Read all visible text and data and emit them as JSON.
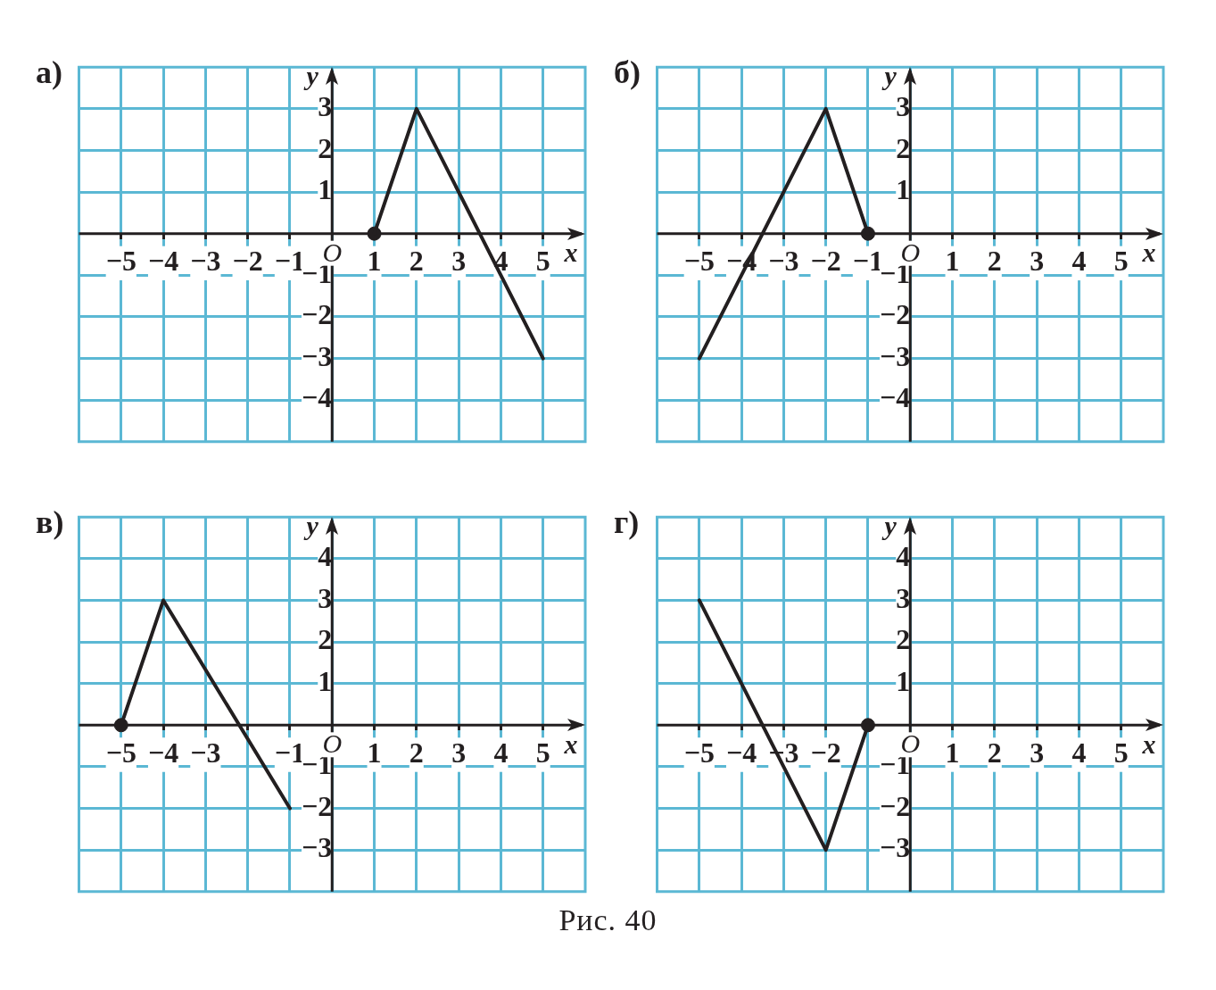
{
  "chart_data": [
    {
      "type": "line",
      "title": "а)",
      "xlabel": "x",
      "ylabel": "y",
      "xlim": [
        -6,
        6
      ],
      "ylim": [
        -5,
        4
      ],
      "xticks": [
        -5,
        -4,
        -3,
        -2,
        -1,
        {
          "value": 0,
          "label": "O"
        },
        1,
        2,
        3,
        4,
        5
      ],
      "yticks": [
        -4,
        -3,
        -2,
        -1,
        1,
        2,
        3
      ],
      "grid": true,
      "legend": false,
      "series": [
        {
          "x": [
            1,
            2,
            5
          ],
          "values": [
            0,
            3,
            -3
          ],
          "color": "#231f20",
          "marker": "none"
        },
        {
          "type": "scatter",
          "x": [
            1
          ],
          "values": [
            0
          ],
          "color": "#231f20",
          "marker": "circle"
        }
      ]
    },
    {
      "type": "line",
      "title": "б)",
      "xlabel": "x",
      "ylabel": "y",
      "xlim": [
        -6,
        6
      ],
      "ylim": [
        -5,
        4
      ],
      "xticks": [
        -5,
        -4,
        -3,
        -2,
        -1,
        {
          "value": 0,
          "label": "O"
        },
        1,
        2,
        3,
        4,
        5
      ],
      "yticks": [
        -4,
        -3,
        -2,
        -1,
        1,
        2,
        3
      ],
      "grid": true,
      "legend": false,
      "series": [
        {
          "x": [
            -5,
            -2,
            -1
          ],
          "values": [
            -3,
            3,
            0
          ],
          "color": "#231f20",
          "marker": "none"
        },
        {
          "type": "scatter",
          "x": [
            -1
          ],
          "values": [
            0
          ],
          "color": "#231f20",
          "marker": "circle"
        }
      ]
    },
    {
      "type": "line",
      "title": "в)",
      "xlabel": "x",
      "ylabel": "y",
      "xlim": [
        -6,
        6
      ],
      "ylim": [
        -4,
        5
      ],
      "xticks": [
        -5,
        -4,
        -3,
        {
          "value": -2,
          "label": null
        },
        -1,
        {
          "value": 0,
          "label": "O"
        },
        1,
        2,
        3,
        4,
        5
      ],
      "yticks": [
        -3,
        -2,
        -1,
        1,
        2,
        3,
        4
      ],
      "grid": true,
      "legend": false,
      "series": [
        {
          "x": [
            -5,
            -4,
            -1
          ],
          "values": [
            0,
            3,
            -2
          ],
          "color": "#231f20",
          "marker": "none"
        },
        {
          "type": "scatter",
          "x": [
            -5
          ],
          "values": [
            0
          ],
          "color": "#231f20",
          "marker": "circle"
        }
      ]
    },
    {
      "type": "line",
      "title": "г)",
      "xlabel": "x",
      "ylabel": "y",
      "xlim": [
        -6,
        6
      ],
      "ylim": [
        -4,
        5
      ],
      "xticks": [
        -5,
        -4,
        -3,
        -2,
        {
          "value": -1,
          "label": null
        },
        {
          "value": 0,
          "label": "O"
        },
        1,
        2,
        3,
        4,
        5
      ],
      "yticks": [
        -3,
        -2,
        -1,
        1,
        2,
        3,
        4
      ],
      "grid": true,
      "legend": false,
      "annotations": [
        "Рис. 40"
      ],
      "series": [
        {
          "x": [
            -5,
            -2,
            -1
          ],
          "values": [
            3,
            -3,
            0
          ],
          "color": "#231f20",
          "marker": "none"
        },
        {
          "type": "scatter",
          "x": [
            -1
          ],
          "values": [
            0
          ],
          "color": "#231f20",
          "marker": "circle"
        }
      ]
    }
  ]
}
